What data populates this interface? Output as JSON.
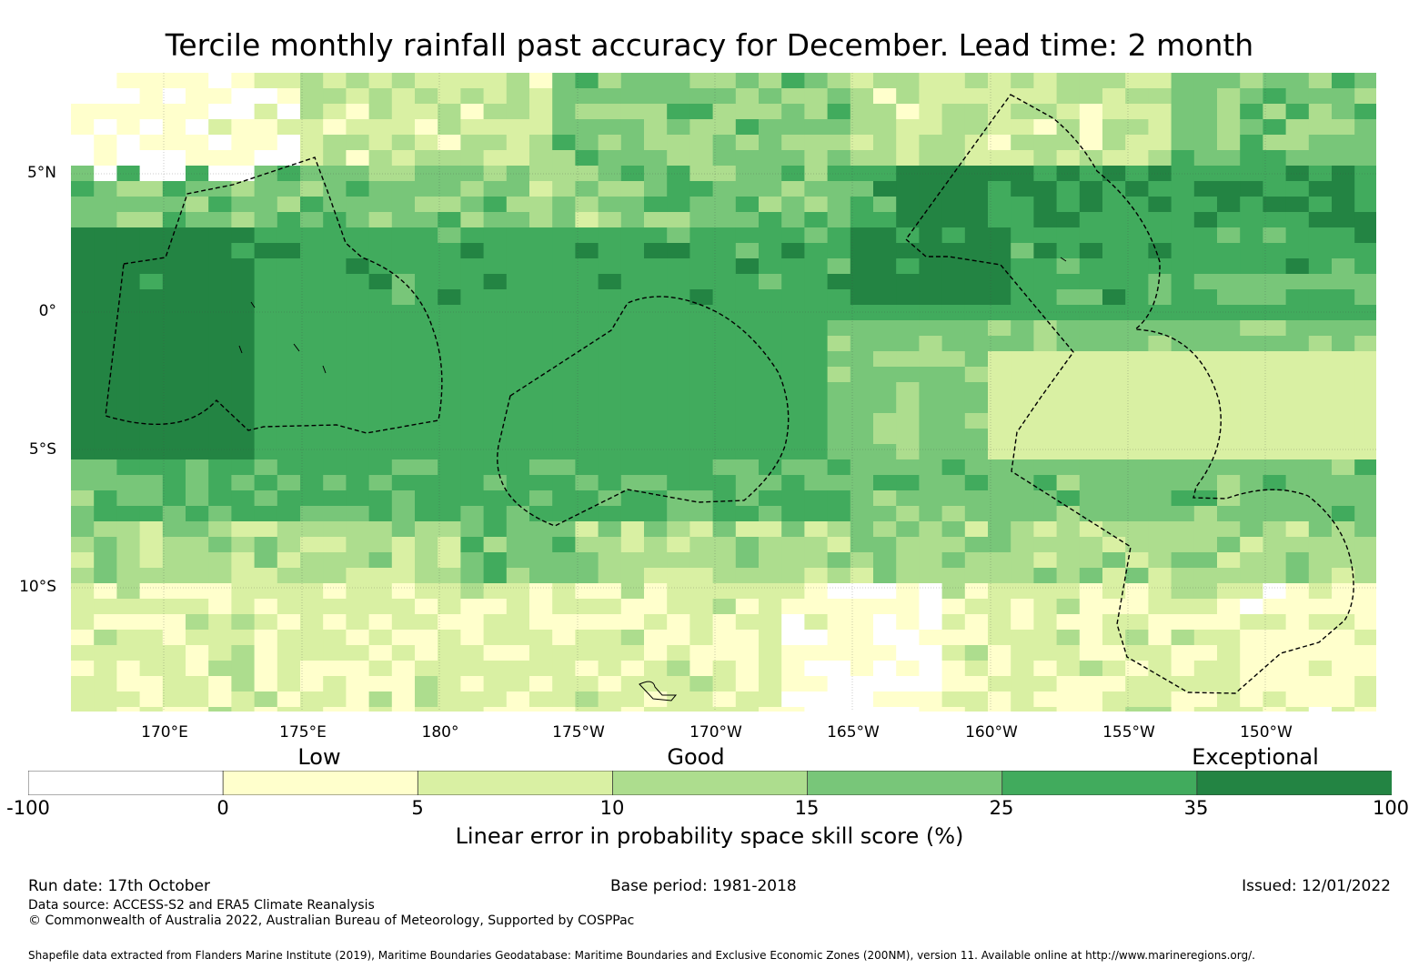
{
  "title": "Tercile monthly rainfall past accuracy for December. Lead time: 2 month",
  "lat_labels": [
    "5°N",
    "0°",
    "5°S",
    "10°S"
  ],
  "lon_labels": [
    "170°E",
    "175°E",
    "180°",
    "175°W",
    "170°W",
    "165°W",
    "160°W",
    "155°W",
    "150°W"
  ],
  "colorbar": {
    "category_labels": [
      "Low",
      "Good",
      "Exceptional"
    ],
    "ticks": [
      "-100",
      "0",
      "5",
      "10",
      "15",
      "25",
      "35",
      "100"
    ],
    "colors": [
      "#ffffff",
      "#ffffcc",
      "#d9f0a3",
      "#addd8e",
      "#78c679",
      "#41ab5d",
      "#238443"
    ],
    "label": "Linear error in probability space skill score (%)"
  },
  "footer": {
    "run_date": "Run date: 17th October",
    "base_period": "Base period: 1981-2018",
    "issued": "Issued: 12/01/2022",
    "data_source": "Data source: ACCESS-S2 and ERA5 Climate Reanalysis",
    "copyright": "© Commonwealth of Australia 2022, Australian Bureau of Meteorology, Supported by COSPPac",
    "shapefile": "Shapefile data extracted from Flanders Marine Institute (2019), Maritime Boundaries Geodatabase: Maritime Boundaries and Exclusive Economic Zones (200NM), version 11. Available online at http://www.marineregions.org/."
  },
  "map_extent": {
    "lon_min_east": 166.6,
    "lon_max_east": 213.8,
    "lat_min": -14.6,
    "lat_max": 8.5
  }
}
